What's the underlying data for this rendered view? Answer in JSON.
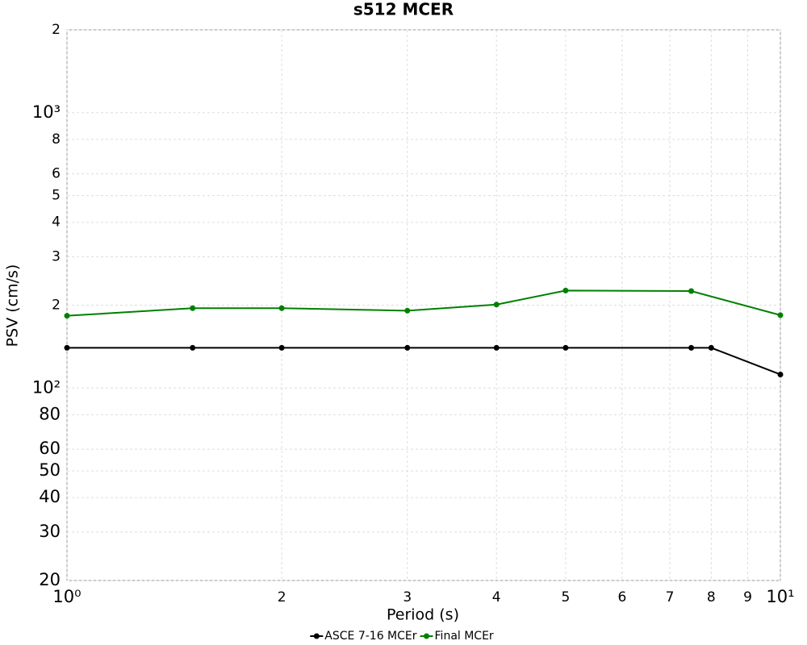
{
  "chart_data": {
    "type": "line",
    "title": "s512 MCER",
    "xlabel": "Period (s)",
    "ylabel": "PSV (cm/s)",
    "xscale": "log",
    "yscale": "log",
    "grid": true,
    "legend": "bottom",
    "xlim": [
      1,
      10
    ],
    "ylim": [
      20,
      2000
    ],
    "xticks": [
      {
        "value": 1,
        "label": "10⁰"
      },
      2,
      3,
      4,
      5,
      6,
      7,
      8,
      9,
      {
        "value": 10,
        "label": "10¹"
      }
    ],
    "yticks": [
      20,
      30,
      40,
      50,
      60,
      80,
      {
        "value": 100,
        "label": "10²"
      },
      {
        "value": 200,
        "label": "2"
      },
      {
        "value": 300,
        "label": "3"
      },
      {
        "value": 400,
        "label": "4"
      },
      {
        "value": 500,
        "label": "5"
      },
      {
        "value": 600,
        "label": "6"
      },
      {
        "value": 800,
        "label": "8"
      },
      {
        "value": 1000,
        "label": "10³"
      },
      {
        "value": 2000,
        "label": "2"
      }
    ],
    "series": [
      {
        "name": "ASCE 7-16 MCEr",
        "color": "#000000",
        "x": [
          1,
          1.5,
          2,
          3,
          4,
          5,
          7.5,
          8,
          10
        ],
        "values": [
          140,
          140,
          140,
          140,
          140,
          140,
          140,
          140,
          112
        ]
      },
      {
        "name": "Final MCEr",
        "color": "#008000",
        "x": [
          1,
          1.5,
          2,
          3,
          4,
          5,
          7.5,
          10
        ],
        "values": [
          183,
          195,
          195,
          191,
          201,
          226,
          225,
          184
        ]
      }
    ]
  }
}
